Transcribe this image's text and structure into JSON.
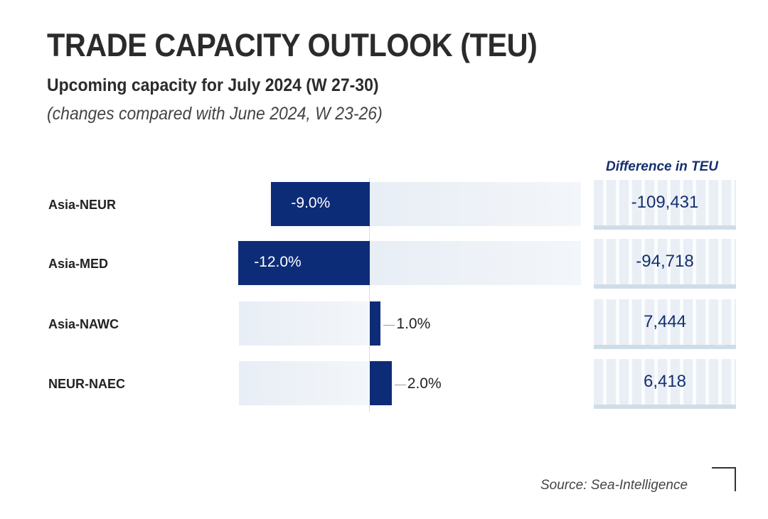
{
  "title": "TRADE CAPACITY OUTLOOK (TEU)",
  "subtitle": "Upcoming capacity for July 2024 (W 27-30)",
  "note": "(changes compared with June 2024, W 23-26)",
  "source": "Source: Sea-Intelligence",
  "colors": {
    "bar": "#0d2c78",
    "text_accent": "#15306e"
  },
  "chart_data": {
    "type": "bar",
    "orientation": "horizontal",
    "title": "TRADE CAPACITY OUTLOOK (TEU)",
    "categories": [
      "Asia-NEUR",
      "Asia-MED",
      "Asia-NAWC",
      "NEUR-NAEC"
    ],
    "values": [
      -9.0,
      -12.0,
      1.0,
      2.0
    ],
    "value_labels": [
      "-9.0%",
      "-12.0%",
      "1.0%",
      "2.0%"
    ],
    "unit": "%",
    "difference_header": "Difference in TEU",
    "difference_values": [
      "-109,431",
      "-94,718",
      "7,444",
      "6,418"
    ],
    "xlim": [
      -12,
      19
    ]
  }
}
